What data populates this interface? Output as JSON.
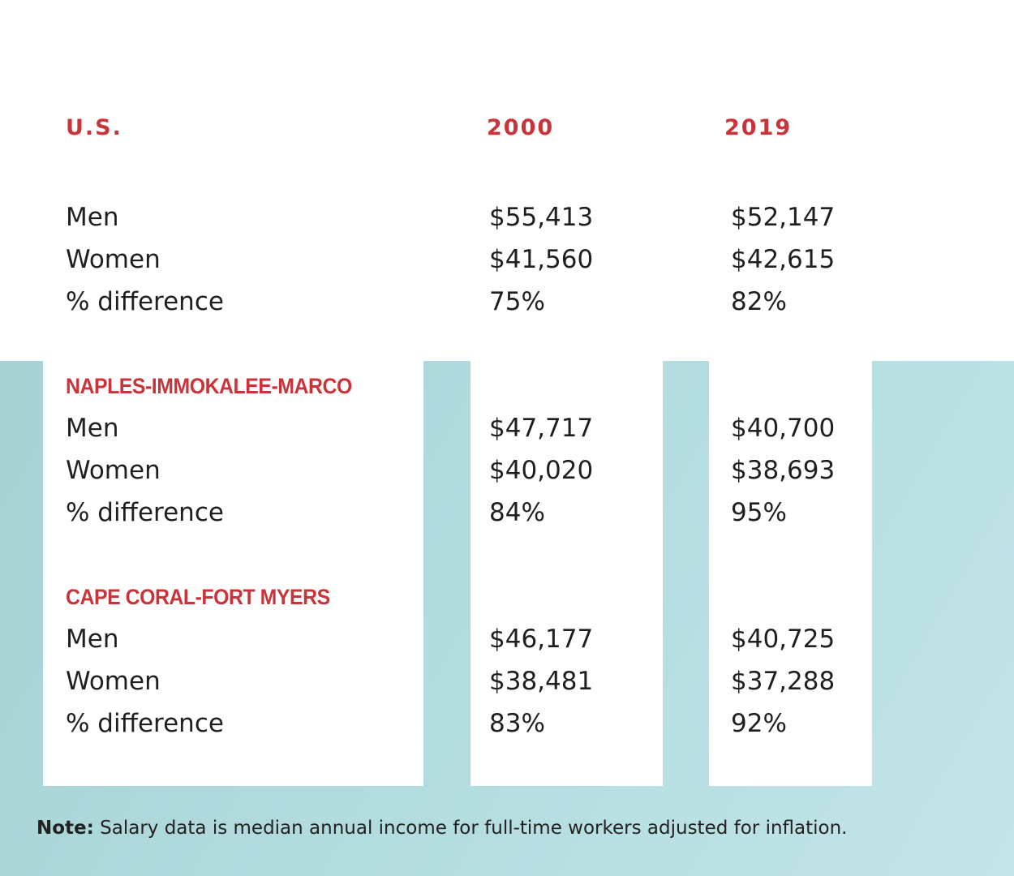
{
  "headers": {
    "region": "U.S.",
    "year1": "2000",
    "year2": "2019"
  },
  "sections": [
    {
      "region": "U.S.",
      "rows": [
        {
          "label": "Men",
          "v2000": "$55,413",
          "v2019": "$52,147"
        },
        {
          "label": "Women",
          "v2000": "$41,560",
          "v2019": "$42,615"
        },
        {
          "label": "% difference",
          "v2000": "75%",
          "v2019": "82%"
        }
      ]
    },
    {
      "region": "NAPLES-IMMOKALEE-MARCO",
      "rows": [
        {
          "label": "Men",
          "v2000": "$47,717",
          "v2019": "$40,700"
        },
        {
          "label": "Women",
          "v2000": "$40,020",
          "v2019": "$38,693"
        },
        {
          "label": "% difference",
          "v2000": "84%",
          "v2019": "95%"
        }
      ]
    },
    {
      "region": "CAPE CORAL-FORT MYERS",
      "rows": [
        {
          "label": "Men",
          "v2000": "$46,177",
          "v2019": "$40,725"
        },
        {
          "label": "Women",
          "v2000": "$38,481",
          "v2019": "$37,288"
        },
        {
          "label": "% difference",
          "v2000": "83%",
          "v2019": "92%"
        }
      ]
    }
  ],
  "note": {
    "prefix": "Note:",
    "text": " Salary data is median annual income for full-time workers adjusted for inflation."
  },
  "colors": {
    "accent": "#c8343a",
    "teal": "#b0d9dc"
  }
}
